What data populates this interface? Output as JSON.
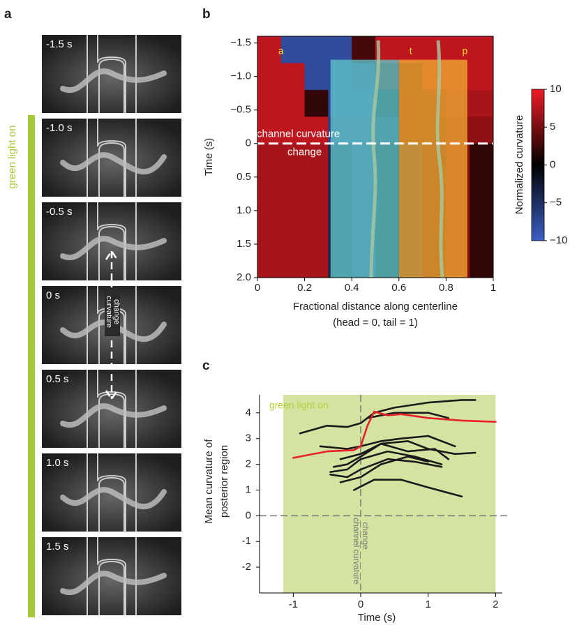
{
  "panel_labels": [
    "a",
    "b",
    "c"
  ],
  "frames": {
    "labels": [
      "-1.5 s",
      "-1.0 s",
      "-0.5 s",
      "0 s",
      "0.5 s",
      "1.0 s",
      "1.5 s"
    ],
    "green_label": "green light on",
    "annotation": [
      "curvature",
      "change"
    ]
  },
  "chart_data": [
    {
      "type": "heatmap",
      "ylabel": "Time (s)",
      "xlabel": [
        "Fractional distance along centerline",
        "(head = 0, tail = 1)"
      ],
      "xlim": [
        0,
        1
      ],
      "xticks": [
        0,
        0.2,
        0.4,
        0.6,
        0.8,
        1
      ],
      "ylim": [
        -1.6,
        2.0
      ],
      "yticks": [
        {
          "value": -1.5,
          "label": "−1.5"
        },
        {
          "value": -1,
          "label": "−1.0"
        },
        {
          "value": -0.5,
          "label": "−0.5"
        },
        0,
        0.5,
        {
          "value": 1,
          "label": "1.0"
        },
        1.5,
        {
          "value": 2,
          "label": "2.0"
        }
      ],
      "x_edges": [
        0,
        0.1,
        0.2,
        0.3,
        0.4,
        0.5,
        0.6,
        0.7,
        0.8,
        0.9,
        1
      ],
      "y_edges": [
        -1.6,
        -1.2,
        -0.8,
        -0.4,
        0,
        0.4,
        0.8,
        1.2,
        1.6,
        2.0
      ],
      "values": [
        [
          8,
          -8,
          -8,
          -8,
          3,
          8,
          8,
          8,
          8,
          8
        ],
        [
          8,
          8,
          -8,
          -8,
          -6,
          4,
          4,
          8,
          8,
          8
        ],
        [
          8,
          8,
          2,
          -8,
          -8,
          -2,
          5,
          5,
          7,
          7
        ],
        [
          8,
          8,
          8,
          -7,
          -7,
          -4,
          4,
          4,
          6,
          6
        ],
        [
          7,
          7,
          7,
          -4,
          -6,
          -2,
          -5,
          3,
          6,
          2
        ],
        [
          7,
          7,
          7,
          -4,
          -6,
          -2,
          -5,
          3,
          6,
          2
        ],
        [
          7,
          7,
          7,
          -4,
          -6,
          -2,
          -5,
          3,
          6,
          2
        ],
        [
          7,
          7,
          7,
          -4,
          -6,
          -2,
          -5,
          3,
          6,
          2
        ],
        [
          7,
          7,
          7,
          -4,
          -6,
          -2,
          -5,
          3,
          6,
          2
        ]
      ],
      "colormap": [
        "#3b5fc4",
        "#000000",
        "#ee1c25"
      ],
      "colorbar": {
        "label": "Normalized curvature",
        "lim": [
          -10,
          10
        ],
        "ticks": [
          10,
          5,
          0,
          {
            "value": -5,
            "label": "−5"
          },
          {
            "value": -10,
            "label": "−10"
          }
        ]
      },
      "overlays": [
        {
          "x": [
            0.31,
            0.6
          ],
          "y": [
            -1.25,
            2.0
          ],
          "color": "#62c6c8"
        },
        {
          "x": [
            0.6,
            0.89
          ],
          "y": [
            -1.25,
            2.0
          ],
          "color": "#f0aa32"
        }
      ],
      "region_labels": [
        {
          "label": "a",
          "x": 0.1
        },
        {
          "label": "t",
          "x": 0.65
        },
        {
          "label": "p",
          "x": 0.88
        }
      ],
      "event": {
        "y": 0,
        "label": [
          "channel curvature",
          "change"
        ]
      }
    },
    {
      "type": "line",
      "ylabel": [
        "Mean curvature of",
        "posterior region"
      ],
      "xlabel": "Time (s)",
      "xlim": [
        -1.5,
        2.1
      ],
      "xticks": [
        -1,
        0,
        1,
        2
      ],
      "ylim": [
        -3.0,
        4.7
      ],
      "yticks": [
        -2,
        -1,
        0,
        1,
        2,
        3,
        4
      ],
      "shade": {
        "x": [
          -1.15,
          2.0
        ],
        "color": "#d5e3a0",
        "label": "green light on"
      },
      "event": {
        "x": 0,
        "label": [
          "channel curvature",
          "change"
        ]
      },
      "series": [
        {
          "color": "#1a1a1a",
          "x": [
            -0.9,
            -0.5,
            -0.2,
            0,
            0.2,
            0.5,
            1.0,
            1.5,
            1.7
          ],
          "values": [
            3.2,
            3.5,
            3.45,
            3.6,
            4.0,
            4.2,
            4.4,
            4.5,
            4.5
          ]
        },
        {
          "color": "#1a1a1a",
          "x": [
            0.1,
            0.5,
            1.0,
            1.3
          ],
          "values": [
            3.8,
            4.0,
            4.0,
            3.8
          ]
        },
        {
          "color": "#1a1a1a",
          "x": [
            -0.6,
            -0.2,
            0,
            0.3,
            0.6,
            1.0,
            1.4
          ],
          "values": [
            2.7,
            2.6,
            2.7,
            2.9,
            3.0,
            3.1,
            2.7
          ]
        },
        {
          "color": "#1a1a1a",
          "x": [
            -0.4,
            -0.2,
            0,
            0.3,
            0.7,
            1.1,
            1.3
          ],
          "values": [
            1.9,
            2.0,
            2.3,
            2.8,
            2.5,
            2.6,
            2.2
          ]
        },
        {
          "color": "#1a1a1a",
          "x": [
            -0.3,
            0,
            0.3,
            0.7,
            1.0,
            1.4,
            1.7
          ],
          "values": [
            2.2,
            2.4,
            2.8,
            2.9,
            2.6,
            2.4,
            2.45
          ]
        },
        {
          "color": "#1a1a1a",
          "x": [
            -0.45,
            -0.2,
            0,
            0.4,
            0.8,
            1.2
          ],
          "values": [
            1.7,
            1.8,
            2.2,
            2.5,
            2.3,
            2.0
          ]
        },
        {
          "color": "#1a1a1a",
          "x": [
            -0.45,
            -0.2,
            0,
            0.4,
            0.8,
            1.2
          ],
          "values": [
            1.6,
            1.5,
            1.8,
            2.2,
            2.1,
            1.9
          ]
        },
        {
          "color": "#1a1a1a",
          "x": [
            -0.3,
            0,
            0.3,
            0.7,
            1.0
          ],
          "values": [
            1.3,
            1.5,
            2.0,
            2.3,
            2.1
          ]
        },
        {
          "color": "#1a1a1a",
          "x": [
            -0.1,
            0.2,
            0.6,
            1.0,
            1.5
          ],
          "values": [
            1.0,
            1.4,
            1.4,
            1.1,
            0.75
          ]
        },
        {
          "color": "#e8202a",
          "x": [
            -1.0,
            -0.5,
            -0.1,
            0,
            0.1,
            0.2,
            0.4,
            0.6,
            1.0,
            1.5,
            2.0
          ],
          "values": [
            2.25,
            2.5,
            2.55,
            2.7,
            3.5,
            4.05,
            3.9,
            3.95,
            3.8,
            3.7,
            3.65
          ]
        }
      ]
    }
  ]
}
